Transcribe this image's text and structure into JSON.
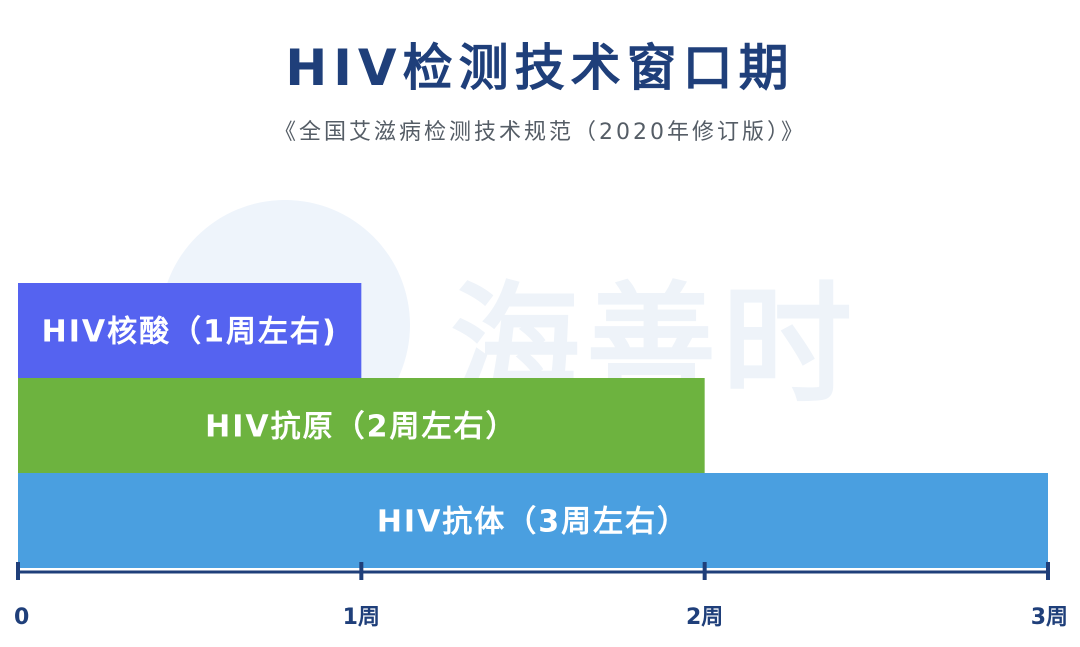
{
  "chart_data": {
    "type": "bar",
    "orientation": "horizontal",
    "title": "HIV检测技术窗口期",
    "subtitle": "《全国艾滋病检测技术规范（2020年修订版）》",
    "categories": [
      "HIV核酸（1周左右)",
      "HIV抗原（2周左右）",
      "HIV抗体（3周左右）"
    ],
    "values": [
      1,
      2,
      3
    ],
    "colors": [
      "#5563f0",
      "#6db33f",
      "#4a9fe0"
    ],
    "xlim": [
      0,
      3
    ],
    "x_ticks": [
      0,
      1,
      2,
      3
    ],
    "x_tick_labels": [
      "0",
      "1周",
      "2周",
      "3周"
    ],
    "axis_color": "#1f3f7a",
    "grid": false,
    "legend": "none"
  },
  "watermark": {
    "text": "海善时"
  }
}
